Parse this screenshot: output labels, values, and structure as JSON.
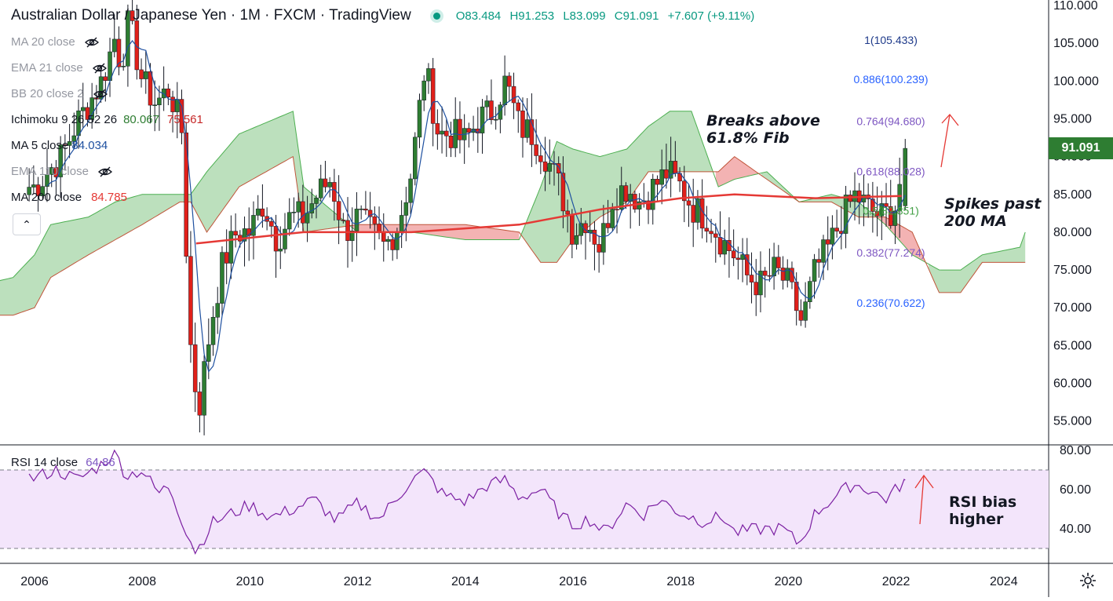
{
  "header": {
    "title": "Australian Dollar / Japanese Yen · 1M · FXCM · TradingView",
    "open": "O83.484",
    "high": "H91.253",
    "low": "L83.099",
    "close": "C91.091",
    "change": "+7.607 (+9.11%)"
  },
  "legend": {
    "ma20": "MA 20 close",
    "ema21": "EMA 21 close",
    "bb": "BB 20 close 2",
    "ichimoku": "Ichimoku 9 26 52 26",
    "ichimoku_v1": "80.067",
    "ichimoku_v2": "75.561",
    "ma5": "MA 5 close",
    "ma5_v": "84.034",
    "ema110": "EMA 110 close",
    "ma200": "MA 200 close",
    "ma200_v": "84.785"
  },
  "rsi_legend": {
    "label": "RSI 14 close",
    "value": "64.86"
  },
  "annotations": {
    "breaks": [
      "Breaks above",
      "61.8% Fib"
    ],
    "spikes": [
      "Spikes past",
      "200 MA"
    ],
    "rsi": [
      "RSI bias",
      "higher"
    ]
  },
  "last_price": "91.091",
  "colors": {
    "up": "#2e7d32",
    "down": "#e0201a",
    "ma5": "#1e50a0",
    "ma200": "#e53935",
    "cloud_green": "#a5d6a7",
    "cloud_red": "#ef9a9a",
    "rsi": "#7b1fa2",
    "rsi_band": "#f3e5fb"
  },
  "chart_data": [
    {
      "type": "candlestick",
      "title": "Australian Dollar / Japanese Yen · 1M · FXCM · TradingView",
      "ylim": [
        51,
        111
      ],
      "price_ticks": [
        "55.000",
        "60.000",
        "65.000",
        "70.000",
        "75.000",
        "80.000",
        "85.000",
        "90.000",
        "95.000",
        "100.000",
        "105.000",
        "110.000"
      ],
      "x_ticks": [
        "2006",
        "2008",
        "2010",
        "2012",
        "2014",
        "2016",
        "2018",
        "2020",
        "2022",
        "2024"
      ],
      "closes": [
        [
          2006.0,
          86
        ],
        [
          2006.25,
          88
        ],
        [
          2006.5,
          90
        ],
        [
          2006.75,
          94
        ],
        [
          2007.0,
          97
        ],
        [
          2007.25,
          100
        ],
        [
          2007.5,
          106
        ],
        [
          2007.6,
          102
        ],
        [
          2007.75,
          108
        ],
        [
          2008.0,
          100
        ],
        [
          2008.25,
          97
        ],
        [
          2008.5,
          99
        ],
        [
          2008.75,
          93
        ],
        [
          2008.83,
          75
        ],
        [
          2008.92,
          62
        ],
        [
          2009.0,
          59
        ],
        [
          2009.08,
          57
        ],
        [
          2009.17,
          63
        ],
        [
          2009.33,
          70
        ],
        [
          2009.5,
          76
        ],
        [
          2009.75,
          80
        ],
        [
          2010.0,
          80
        ],
        [
          2010.25,
          84
        ],
        [
          2010.5,
          79
        ],
        [
          2010.75,
          82
        ],
        [
          2011.0,
          82
        ],
        [
          2011.25,
          85
        ],
        [
          2011.5,
          87
        ],
        [
          2011.75,
          80
        ],
        [
          2012.0,
          82
        ],
        [
          2012.25,
          80
        ],
        [
          2012.5,
          78
        ],
        [
          2012.75,
          81
        ],
        [
          2013.0,
          88
        ],
        [
          2013.25,
          102
        ],
        [
          2013.5,
          93
        ],
        [
          2013.75,
          93
        ],
        [
          2014.0,
          92
        ],
        [
          2014.25,
          95
        ],
        [
          2014.5,
          96
        ],
        [
          2014.75,
          100
        ],
        [
          2015.0,
          94
        ],
        [
          2015.25,
          93
        ],
        [
          2015.5,
          90
        ],
        [
          2015.75,
          86
        ],
        [
          2016.0,
          80
        ],
        [
          2016.25,
          82
        ],
        [
          2016.5,
          78
        ],
        [
          2016.75,
          85
        ],
        [
          2017.0,
          86
        ],
        [
          2017.25,
          84
        ],
        [
          2017.5,
          86
        ],
        [
          2017.75,
          88
        ],
        [
          2018.0,
          86
        ],
        [
          2018.25,
          83
        ],
        [
          2018.5,
          82
        ],
        [
          2018.75,
          79
        ],
        [
          2019.0,
          77
        ],
        [
          2019.25,
          74
        ],
        [
          2019.5,
          73
        ],
        [
          2019.75,
          75
        ],
        [
          2020.0,
          73
        ],
        [
          2020.25,
          68
        ],
        [
          2020.5,
          75
        ],
        [
          2020.75,
          78
        ],
        [
          2021.0,
          82
        ],
        [
          2021.25,
          85
        ],
        [
          2021.5,
          83
        ],
        [
          2021.75,
          82
        ],
        [
          2021.92,
          83
        ],
        [
          2022.0,
          83.5
        ],
        [
          2022.17,
          91.1
        ]
      ],
      "ma200": [
        [
          2009.0,
          78.5
        ],
        [
          2011.0,
          80
        ],
        [
          2013.0,
          80
        ],
        [
          2015.0,
          81
        ],
        [
          2016.5,
          83
        ],
        [
          2018.0,
          84.5
        ],
        [
          2019.0,
          85
        ],
        [
          2020.5,
          84.5
        ],
        [
          2022.1,
          84.8
        ]
      ],
      "fib_levels": [
        {
          "label": "1(105.433)",
          "value": 105.433,
          "color": "#1e3a8a"
        },
        {
          "label": "0.886(100.239)",
          "value": 100.239,
          "color": "#2962ff"
        },
        {
          "label": "0.764(94.680)",
          "value": 94.68,
          "color": "#7e57c2"
        },
        {
          "label": "0.618(88.028)",
          "value": 88.028,
          "color": "#7e57c2"
        },
        {
          "label": "0.5(82.851)",
          "value": 82.851,
          "color": "#43a047"
        },
        {
          "label": "0.382(77.274)",
          "value": 77.274,
          "color": "#7e57c2"
        },
        {
          "label": "0.236(70.622)",
          "value": 70.622,
          "color": "#2962ff"
        }
      ]
    },
    {
      "type": "line",
      "title": "RSI 14 close",
      "ylim": [
        26,
        82
      ],
      "y_ticks": [
        "40.00",
        "60.00",
        "80.00"
      ],
      "band": [
        30,
        70
      ],
      "series": [
        {
          "name": "RSI 14 close",
          "values": [
            [
              2006.0,
              66
            ],
            [
              2006.4,
              70
            ],
            [
              2006.8,
              65
            ],
            [
              2007.2,
              72
            ],
            [
              2007.5,
              79
            ],
            [
              2007.7,
              67
            ],
            [
              2008.0,
              70
            ],
            [
              2008.3,
              58
            ],
            [
              2008.5,
              62
            ],
            [
              2008.8,
              40
            ],
            [
              2009.0,
              28
            ],
            [
              2009.3,
              43
            ],
            [
              2009.6,
              47
            ],
            [
              2010.0,
              52
            ],
            [
              2010.4,
              46
            ],
            [
              2010.8,
              50
            ],
            [
              2011.2,
              55
            ],
            [
              2011.6,
              44
            ],
            [
              2012.0,
              53
            ],
            [
              2012.4,
              45
            ],
            [
              2012.8,
              58
            ],
            [
              2013.0,
              65
            ],
            [
              2013.25,
              69
            ],
            [
              2013.6,
              57
            ],
            [
              2014.0,
              54
            ],
            [
              2014.4,
              62
            ],
            [
              2014.75,
              65
            ],
            [
              2015.0,
              56
            ],
            [
              2015.4,
              60
            ],
            [
              2015.8,
              46
            ],
            [
              2016.0,
              42
            ],
            [
              2016.3,
              45
            ],
            [
              2016.6,
              38
            ],
            [
              2017.0,
              53
            ],
            [
              2017.3,
              47
            ],
            [
              2017.6,
              55
            ],
            [
              2018.0,
              48
            ],
            [
              2018.4,
              44
            ],
            [
              2018.8,
              46
            ],
            [
              2019.0,
              38
            ],
            [
              2019.5,
              40
            ],
            [
              2019.9,
              40
            ],
            [
              2020.2,
              32
            ],
            [
              2020.5,
              48
            ],
            [
              2020.9,
              57
            ],
            [
              2021.2,
              63
            ],
            [
              2021.5,
              60
            ],
            [
              2021.8,
              55
            ],
            [
              2022.0,
              60
            ],
            [
              2022.17,
              64.86
            ]
          ]
        }
      ]
    }
  ]
}
